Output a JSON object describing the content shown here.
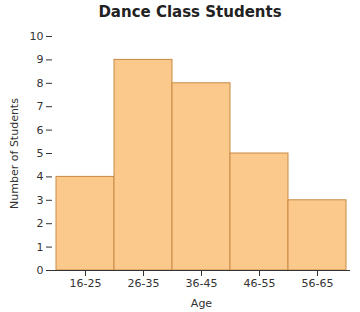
{
  "chart_data": {
    "type": "bar",
    "title": "Dance Class Students",
    "x_label": "Age",
    "y_label": "Number of Students",
    "categories": [
      "16-25",
      "26-35",
      "36-45",
      "46-55",
      "56-65"
    ],
    "values": [
      4,
      9,
      8,
      5,
      3
    ],
    "color": "#fbc98c",
    "ylim": [
      0,
      10
    ],
    "yticks": [
      0,
      1,
      2,
      3,
      4,
      5,
      6,
      7,
      8,
      9,
      10
    ],
    "grid": false
  }
}
